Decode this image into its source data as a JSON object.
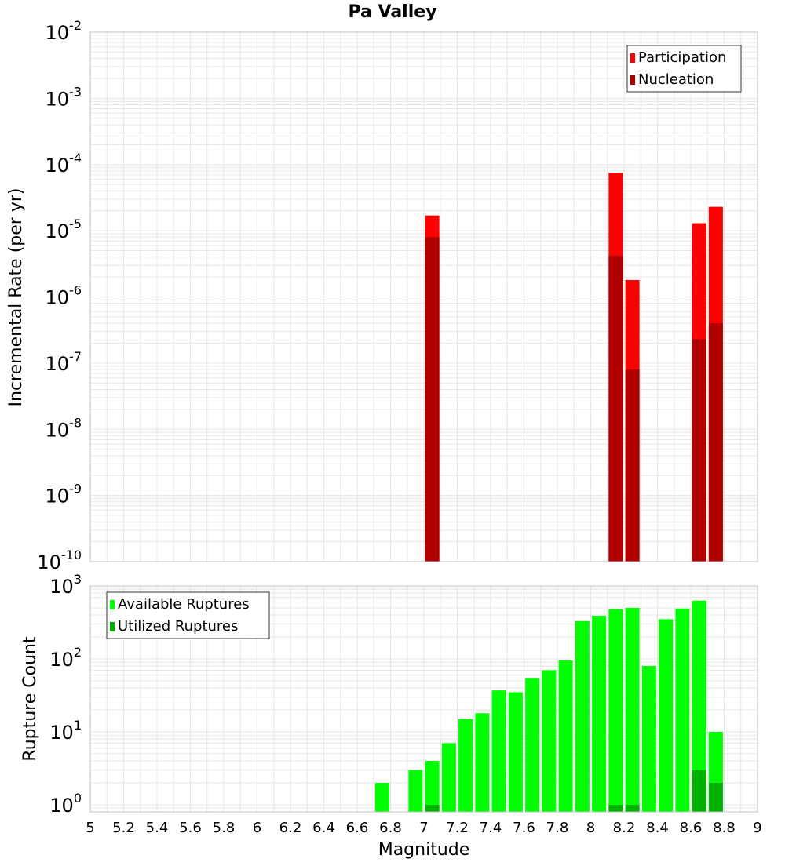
{
  "title": "Pa Valley",
  "xlabel": "Magnitude",
  "x_ticks": [
    "5",
    "5.2",
    "5.4",
    "5.6",
    "5.8",
    "6",
    "6.2",
    "6.4",
    "6.6",
    "6.8",
    "7",
    "7.2",
    "7.4",
    "7.6",
    "7.8",
    "8",
    "8.2",
    "8.4",
    "8.6",
    "8.8",
    "9"
  ],
  "colors": {
    "participation": "#ff0000",
    "nucleation": "#b20000",
    "available": "#00ff00",
    "utilized": "#00b200",
    "grid": "#e6e6e6",
    "frame": "#c0c0c0"
  },
  "chart_data": [
    {
      "type": "bar",
      "ylabel": "Incremental Rate (per yr)",
      "yscale": "log",
      "ylim": [
        1e-10,
        0.01
      ],
      "xlim": [
        5,
        9
      ],
      "y_ticks": [
        {
          "base": "10",
          "exp": "-2",
          "value": 0.01
        },
        {
          "base": "10",
          "exp": "-3",
          "value": 0.001
        },
        {
          "base": "10",
          "exp": "-4",
          "value": 0.0001
        },
        {
          "base": "10",
          "exp": "-5",
          "value": 1e-05
        },
        {
          "base": "10",
          "exp": "-6",
          "value": 1e-06
        },
        {
          "base": "10",
          "exp": "-7",
          "value": 1e-07
        },
        {
          "base": "10",
          "exp": "-8",
          "value": 1e-08
        },
        {
          "base": "10",
          "exp": "-9",
          "value": 1e-09
        },
        {
          "base": "10",
          "exp": "-10",
          "value": 1e-10
        }
      ],
      "legend": {
        "position": "top-right"
      },
      "x": [
        7.05,
        8.15,
        8.25,
        8.65,
        8.75
      ],
      "series": [
        {
          "name": "Participation",
          "values": [
            1.7e-05,
            7.5e-05,
            1.8e-06,
            1.3e-05,
            2.3e-05
          ]
        },
        {
          "name": "Nucleation",
          "values": [
            8e-06,
            4.2e-06,
            8e-08,
            2.3e-07,
            4e-07
          ]
        }
      ]
    },
    {
      "type": "bar",
      "ylabel": "Rupture Count",
      "yscale": "log",
      "ylim": [
        0.8,
        1000
      ],
      "xlim": [
        5,
        9
      ],
      "y_ticks": [
        {
          "base": "10",
          "exp": "3",
          "value": 1000
        },
        {
          "base": "10",
          "exp": "2",
          "value": 100
        },
        {
          "base": "10",
          "exp": "1",
          "value": 10
        },
        {
          "base": "10",
          "exp": "0",
          "value": 1
        }
      ],
      "legend": {
        "position": "top-left"
      },
      "x": [
        6.75,
        6.95,
        7.05,
        7.15,
        7.25,
        7.35,
        7.45,
        7.55,
        7.65,
        7.75,
        7.85,
        7.95,
        8.05,
        8.15,
        8.25,
        8.35,
        8.45,
        8.55,
        8.65,
        8.75
      ],
      "series": [
        {
          "name": "Available Ruptures",
          "values": [
            2,
            3,
            4,
            7,
            15,
            18,
            37,
            35,
            55,
            70,
            95,
            330,
            390,
            480,
            500,
            80,
            350,
            490,
            630,
            10
          ]
        },
        {
          "name": "Utilized Ruptures",
          "values": [
            0,
            0,
            1,
            0,
            0,
            0,
            0,
            0,
            0,
            0,
            0,
            0,
            0,
            1,
            1,
            0,
            0,
            0,
            3,
            2
          ]
        }
      ]
    }
  ]
}
